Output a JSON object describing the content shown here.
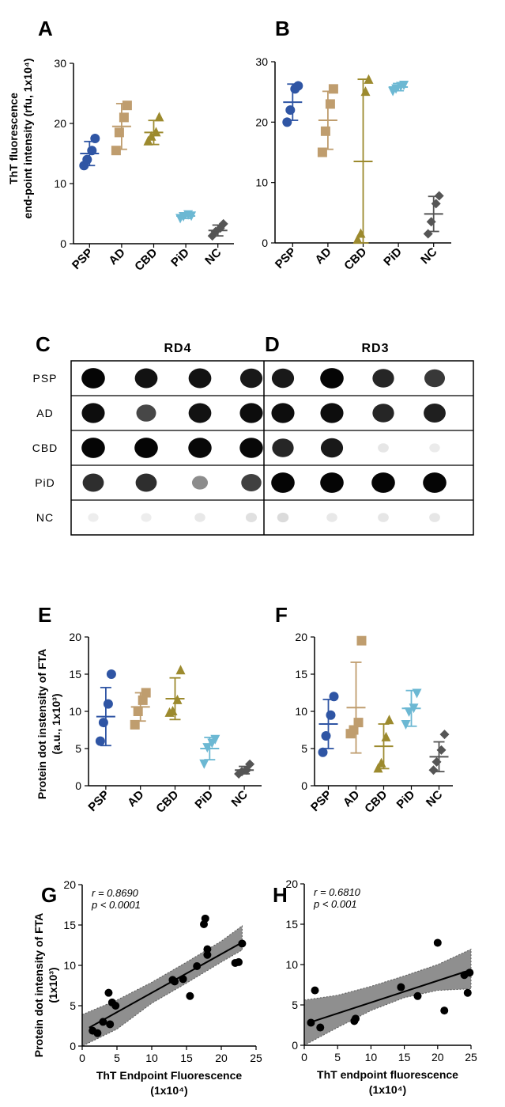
{
  "panel_labels": {
    "A": "A",
    "B": "B",
    "C": "C",
    "D": "D",
    "E": "E",
    "F": "F",
    "G": "G",
    "H": "H"
  },
  "colors": {
    "PSP": "#2f55a4",
    "AD": "#bf9d6e",
    "CBD": "#9c8a2e",
    "PiD": "#6cb8d3",
    "NC": "#555555",
    "shade": "#8f8f8f",
    "reg": "#000000"
  },
  "ylabels": {
    "ab_line1": "ThT  fluorescence",
    "ab_line2": "end-point intensity (rfu, 1x10⁴)",
    "ef_line1": "Protein dot instensity of FTA",
    "ef_line2": "(a.u., 1x10³)",
    "gh_line1": "Protein dot intensity of  FTA",
    "gh_line2": "(1x10³)"
  },
  "blots": {
    "C_header": "RD4",
    "D_header": "RD3",
    "rows": [
      "PSP",
      "AD",
      "CBD",
      "PiD",
      "NC"
    ],
    "C_intensity": [
      [
        0.98,
        0.93,
        0.93,
        0.9
      ],
      [
        0.95,
        0.72,
        0.93,
        0.95
      ],
      [
        0.98,
        0.98,
        0.97,
        0.97
      ],
      [
        0.82,
        0.82,
        0.45,
        0.75
      ],
      [
        0.07,
        0.07,
        0.09,
        0.12
      ]
    ],
    "D_intensity": [
      [
        0.9,
        0.98,
        0.85,
        0.78
      ],
      [
        0.95,
        0.95,
        0.85,
        0.88
      ],
      [
        0.85,
        0.9,
        0.1,
        0.08
      ],
      [
        0.98,
        0.98,
        0.98,
        0.98
      ],
      [
        0.14,
        0.09,
        0.1,
        0.1
      ]
    ]
  },
  "chart_data": [
    {
      "id": "A",
      "type": "scatter",
      "categories": [
        "PSP",
        "AD",
        "CBD",
        "PiD",
        "NC"
      ],
      "ylim": [
        0,
        30
      ],
      "yticks": [
        0,
        10,
        20,
        30
      ],
      "series": [
        {
          "name": "PSP",
          "marker": "circle",
          "values": [
            13,
            14,
            15.5,
            17.5
          ],
          "mean": 15.0,
          "sd": 2.0
        },
        {
          "name": "AD",
          "marker": "square",
          "values": [
            15.5,
            18.5,
            21,
            23
          ],
          "mean": 19.5,
          "sd": 3.8
        },
        {
          "name": "CBD",
          "marker": "triangle",
          "values": [
            17,
            17.8,
            18.5,
            21
          ],
          "mean": 18.5,
          "sd": 2.0
        },
        {
          "name": "PiD",
          "marker": "triangle-down",
          "values": [
            4.3,
            4.6,
            4.9,
            4.7
          ],
          "mean": 4.6,
          "sd": 0.4
        },
        {
          "name": "NC",
          "marker": "diamond",
          "values": [
            1.3,
            2.0,
            2.6,
            3.3
          ],
          "mean": 2.2,
          "sd": 0.9
        }
      ]
    },
    {
      "id": "B",
      "type": "scatter",
      "categories": [
        "PSP",
        "AD",
        "CBD",
        "PiD",
        "NC"
      ],
      "ylim": [
        0,
        30
      ],
      "yticks": [
        0,
        10,
        20,
        30
      ],
      "series": [
        {
          "name": "PSP",
          "marker": "circle",
          "values": [
            20,
            22,
            25.5,
            26
          ],
          "mean": 23.3,
          "sd": 3.0
        },
        {
          "name": "AD",
          "marker": "square",
          "values": [
            15,
            18.5,
            23,
            25.5
          ],
          "mean": 20.3,
          "sd": 4.8
        },
        {
          "name": "CBD",
          "marker": "triangle",
          "values": [
            0.5,
            1.5,
            25,
            27
          ],
          "mean": 13.5,
          "sd": 13.6
        },
        {
          "name": "PiD",
          "marker": "triangle-down",
          "values": [
            25.2,
            25.6,
            26,
            26.2
          ],
          "mean": 25.8,
          "sd": 0.6
        },
        {
          "name": "NC",
          "marker": "diamond",
          "values": [
            1.5,
            3.5,
            6.5,
            7.8
          ],
          "mean": 4.8,
          "sd": 2.9
        }
      ]
    },
    {
      "id": "E",
      "type": "scatter",
      "categories": [
        "PSP",
        "AD",
        "CBD",
        "PiD",
        "NC"
      ],
      "ylim": [
        0,
        20
      ],
      "yticks": [
        0,
        5,
        10,
        15,
        20
      ],
      "series": [
        {
          "name": "PSP",
          "marker": "circle",
          "values": [
            6,
            8.5,
            11,
            15
          ],
          "mean": 9.3,
          "sd": 3.9
        },
        {
          "name": "AD",
          "marker": "square",
          "values": [
            8.2,
            10,
            11.5,
            12.5
          ],
          "mean": 10.6,
          "sd": 1.9
        },
        {
          "name": "CBD",
          "marker": "triangle",
          "values": [
            9.8,
            10,
            11.5,
            15.5
          ],
          "mean": 11.7,
          "sd": 2.8
        },
        {
          "name": "PiD",
          "marker": "triangle-down",
          "values": [
            3,
            5.2,
            5.8,
            6.3
          ],
          "mean": 5.0,
          "sd": 1.5
        },
        {
          "name": "NC",
          "marker": "diamond",
          "values": [
            1.6,
            1.9,
            2.1,
            2.9
          ],
          "mean": 2.1,
          "sd": 0.5
        }
      ]
    },
    {
      "id": "F",
      "type": "scatter",
      "categories": [
        "PSP",
        "AD",
        "CBD",
        "PiD",
        "NC"
      ],
      "ylim": [
        0,
        20
      ],
      "yticks": [
        0,
        5,
        10,
        15,
        20
      ],
      "series": [
        {
          "name": "PSP",
          "marker": "circle",
          "values": [
            4.5,
            6.7,
            9.5,
            12
          ],
          "mean": 8.3,
          "sd": 3.3
        },
        {
          "name": "AD",
          "marker": "square",
          "values": [
            7,
            7.5,
            8.5,
            19.5
          ],
          "mean": 10.5,
          "sd": 6.1
        },
        {
          "name": "CBD",
          "marker": "triangle",
          "values": [
            2.3,
            3,
            6.5,
            8.8
          ],
          "mean": 5.3,
          "sd": 3.0
        },
        {
          "name": "PiD",
          "marker": "triangle-down",
          "values": [
            8.3,
            10,
            10.5,
            12.5
          ],
          "mean": 10.4,
          "sd": 2.4
        },
        {
          "name": "NC",
          "marker": "diamond",
          "values": [
            2.1,
            3.2,
            4.8,
            6.9
          ],
          "mean": 3.9,
          "sd": 2.0
        }
      ]
    },
    {
      "id": "G",
      "type": "scatter",
      "xlabel": "ThT Endpoint Fluorescence",
      "xlabel_unit": "(1x10⁴)",
      "xlim": [
        0,
        25
      ],
      "xticks": [
        0,
        5,
        10,
        15,
        20,
        25
      ],
      "ylim": [
        0,
        20
      ],
      "yticks": [
        0,
        5,
        10,
        15,
        20
      ],
      "r_label": "r = 0.8690",
      "p_label": "p < 0.0001",
      "fit": {
        "slope": 0.48,
        "intercept": 1.8
      },
      "band": {
        "upper": [
          [
            0,
            3.9
          ],
          [
            5,
            5.7
          ],
          [
            10,
            7.9
          ],
          [
            15,
            10.4
          ],
          [
            20,
            13.0
          ],
          [
            23,
            14.9
          ]
        ],
        "lower": [
          [
            0,
            -0.2
          ],
          [
            5,
            2.1
          ],
          [
            10,
            5.3
          ],
          [
            15,
            7.8
          ],
          [
            20,
            10.4
          ],
          [
            23,
            11.9
          ]
        ]
      },
      "points": [
        [
          1.5,
          1.9
        ],
        [
          2.2,
          1.6
        ],
        [
          3.0,
          3.0
        ],
        [
          3.8,
          6.6
        ],
        [
          4.0,
          2.7
        ],
        [
          4.3,
          5.4
        ],
        [
          4.8,
          5.0
        ],
        [
          13.0,
          8.2
        ],
        [
          13.3,
          8.0
        ],
        [
          14.5,
          8.3
        ],
        [
          15.5,
          6.2
        ],
        [
          16.5,
          9.9
        ],
        [
          17.5,
          15.1
        ],
        [
          17.7,
          15.8
        ],
        [
          18.0,
          11.3
        ],
        [
          18.0,
          12.0
        ],
        [
          22.0,
          10.3
        ],
        [
          22.5,
          10.4
        ],
        [
          23.0,
          12.7
        ]
      ]
    },
    {
      "id": "H",
      "type": "scatter",
      "xlabel": "ThT endpoint fluorescence",
      "xlabel_unit": "(1x10⁴)",
      "xlim": [
        0,
        25
      ],
      "xticks": [
        0,
        5,
        10,
        15,
        20,
        25
      ],
      "ylim": [
        0,
        20
      ],
      "yticks": [
        0,
        5,
        10,
        15,
        20
      ],
      "r_label": "r = 0.6810",
      "p_label": "p < 0.001",
      "fit": {
        "slope": 0.27,
        "intercept": 2.6
      },
      "band": {
        "upper": [
          [
            0,
            5.6
          ],
          [
            5,
            6.2
          ],
          [
            10,
            7.3
          ],
          [
            15,
            8.6
          ],
          [
            20,
            10.0
          ],
          [
            25,
            11.9
          ]
        ],
        "lower": [
          [
            0,
            -0.3
          ],
          [
            5,
            2.2
          ],
          [
            10,
            4.3
          ],
          [
            15,
            5.9
          ],
          [
            20,
            6.8
          ],
          [
            25,
            7.0
          ]
        ]
      },
      "points": [
        [
          1.0,
          2.8
        ],
        [
          1.6,
          6.8
        ],
        [
          2.4,
          2.2
        ],
        [
          7.5,
          3.0
        ],
        [
          7.7,
          3.3
        ],
        [
          14.5,
          7.2
        ],
        [
          17.0,
          6.1
        ],
        [
          20.0,
          12.7
        ],
        [
          21.0,
          4.3
        ],
        [
          24.0,
          8.7
        ],
        [
          24.5,
          6.5
        ],
        [
          24.8,
          9.0
        ]
      ]
    }
  ]
}
